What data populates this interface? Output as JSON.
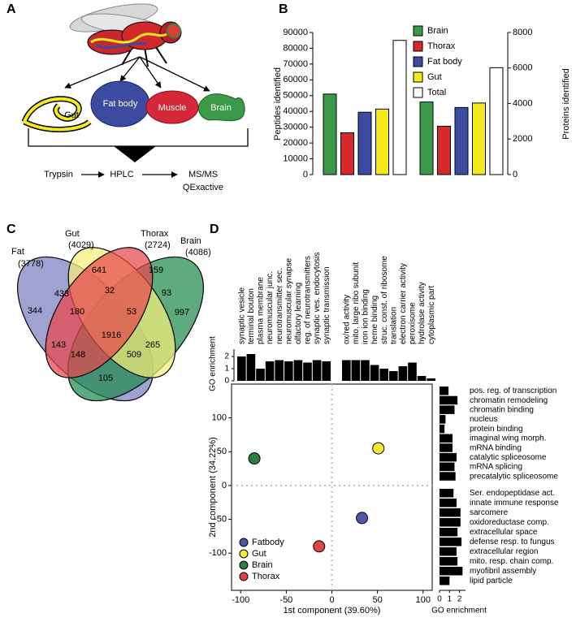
{
  "panel_labels": [
    "A",
    "B",
    "C",
    "D"
  ],
  "panel_a": {
    "organs": [
      "Gut",
      "Fat body",
      "Muscle",
      "Brain"
    ],
    "steps": [
      "Trypsin",
      "HPLC",
      "MS/MS"
    ],
    "instrument": "QExactive"
  },
  "venn": {
    "sets": [
      {
        "name": "Fat",
        "count": "(3778)"
      },
      {
        "name": "Gut",
        "count": "(4029)"
      },
      {
        "name": "Thorax",
        "count": "(2724)"
      },
      {
        "name": "Brain",
        "count": "(4086)"
      }
    ],
    "regions": [
      641,
      159,
      433,
      32,
      93,
      344,
      180,
      53,
      997,
      1916,
      143,
      265,
      148,
      509,
      105
    ]
  },
  "chart_data": [
    {
      "type": "bar",
      "categories": [
        "Brain",
        "Thorax",
        "Fat body",
        "Gut",
        "Total"
      ],
      "colors": [
        "#3b9a48",
        "#d62a2a",
        "#3a4ba0",
        "#f5e91d",
        "#ffffff"
      ],
      "series": [
        {
          "name": "Peptides identified",
          "values": [
            51000,
            26500,
            39500,
            41500,
            85000
          ]
        },
        {
          "name": "Proteins identified",
          "axis": "y2",
          "values": [
            4086,
            2724,
            3778,
            4029,
            6018
          ]
        }
      ],
      "ylim": [
        0,
        90000
      ],
      "yticks": [
        0,
        10000,
        20000,
        30000,
        40000,
        50000,
        60000,
        70000,
        80000,
        90000
      ],
      "y2lim": [
        0,
        8000
      ],
      "y2ticks": [
        0,
        2000,
        4000,
        6000,
        8000
      ]
    },
    {
      "type": "scatter",
      "xlabel": "1st component (39.60%)",
      "ylabel": "2nd component (34.22%)",
      "xlim": [
        -110,
        110
      ],
      "xticks": [
        -100,
        -50,
        0,
        50,
        100
      ],
      "ylim": [
        -155,
        150
      ],
      "yticks": [
        -100,
        -50,
        0,
        50,
        100
      ],
      "series": [
        {
          "name": "Fatbody",
          "color": "#4f58a8",
          "x": [
            33
          ],
          "values": [
            -48
          ]
        },
        {
          "name": "Gut",
          "color": "#f4ea3c",
          "x": [
            51
          ],
          "values": [
            55
          ]
        },
        {
          "name": "Brain",
          "color": "#2f7d44",
          "x": [
            -85
          ],
          "values": [
            40
          ]
        },
        {
          "name": "Thorax",
          "color": "#e0453d",
          "x": [
            -14
          ],
          "values": [
            -90
          ]
        }
      ]
    },
    {
      "type": "bar",
      "ylabel": "GO enrichment",
      "color": "#000000",
      "categories": [
        "synaptic vesicle",
        "terminal bouton",
        "plasma membrane",
        "neuromuscular junc.",
        "neurotransmitter sec.",
        "neuromuscular synapse",
        "olfactory learning",
        "reg. of neurotransmitters",
        "synaptic ves. endocytosis",
        "synaptic transmission",
        "ox/red activity",
        "mito. large ribo subunit",
        "iron ion binding",
        "heme binding",
        "struc. const. of ribosome",
        "translation",
        "electron carrier activity",
        "peroxisome",
        "hydrolase activity",
        "cytoplasmic part"
      ],
      "values": [
        2.0,
        2.2,
        1.0,
        1.6,
        1.7,
        1.6,
        1.7,
        1.5,
        1.7,
        1.6,
        1.7,
        1.7,
        1.7,
        1.3,
        1.0,
        0.8,
        1.2,
        1.5,
        0.4,
        0.2
      ],
      "ylim": [
        0,
        2.6
      ],
      "yticks": [
        0,
        1,
        2
      ]
    },
    {
      "type": "barh",
      "xlabel": "GO enrichment",
      "color": "#000000",
      "categories": [
        "pos. reg. of transcription",
        "chromatin remodeling",
        "chromatin binding",
        "nucleus",
        "protein binding",
        "imaginal wing morph.",
        "mRNA binding",
        "catalytic spliceosome",
        "mRNA splicing",
        "precatalytic spliceosome",
        "Ser. endopeptidase act.",
        "innate immune response",
        "sarcomere",
        "oxidoreductase comp.",
        "extracellular space",
        "defense resp. to fungus",
        "extracellular region",
        "mito. resp. chain comp.",
        "myofibril assembly",
        "lipid particle"
      ],
      "values": [
        0.9,
        1.8,
        1.5,
        0.6,
        0.5,
        1.3,
        1.3,
        1.7,
        1.5,
        1.6,
        1.4,
        1.7,
        2.1,
        2.1,
        1.8,
        2.2,
        1.7,
        1.8,
        2.3,
        1.0
      ],
      "xlim": [
        0,
        2.6
      ],
      "xticks": [
        0,
        1,
        2
      ]
    }
  ]
}
